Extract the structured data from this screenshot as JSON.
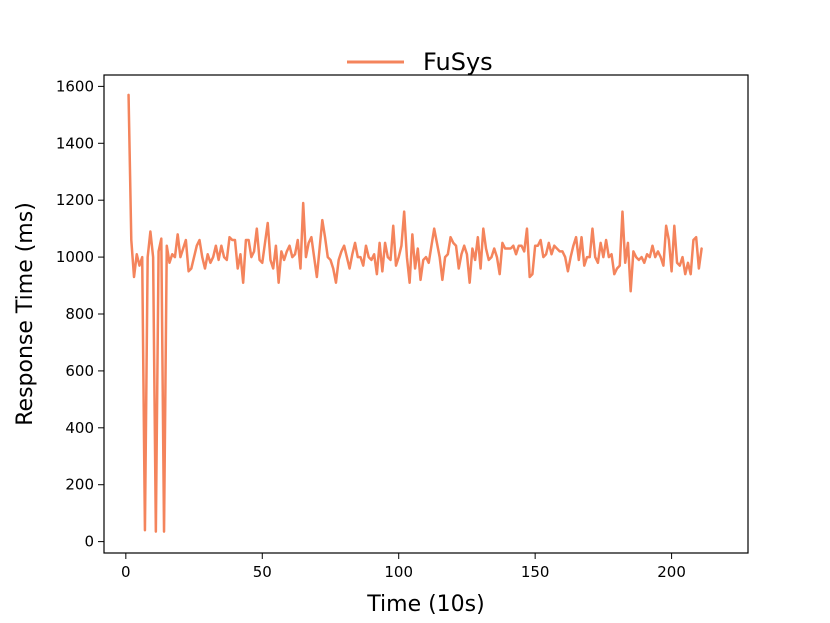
{
  "chart_data": {
    "type": "line",
    "title": "",
    "xlabel": "Time (10s)",
    "ylabel": "Response Time (ms)",
    "xlim": [
      -8,
      228
    ],
    "ylim": [
      -40,
      1640
    ],
    "x_ticks": [
      0,
      50,
      100,
      150,
      200
    ],
    "y_ticks": [
      0,
      200,
      400,
      600,
      800,
      1000,
      1200,
      1400,
      1600
    ],
    "grid": false,
    "legend_position": "top-center",
    "series": [
      {
        "name": "FuSys",
        "color": "#f4845c",
        "x_start": 1,
        "x_step": 1,
        "values": [
          1570,
          1060,
          930,
          1010,
          970,
          1000,
          40,
          1000,
          1090,
          1000,
          35,
          1020,
          1065,
          35,
          1040,
          980,
          1010,
          1000,
          1080,
          1000,
          1030,
          1060,
          950,
          960,
          1000,
          1040,
          1060,
          1000,
          960,
          1010,
          980,
          1000,
          1040,
          990,
          1040,
          1000,
          990,
          1070,
          1060,
          1060,
          960,
          1010,
          910,
          1060,
          1060,
          1000,
          1020,
          1100,
          990,
          980,
          1050,
          1120,
          990,
          960,
          1040,
          910,
          1020,
          990,
          1020,
          1040,
          1000,
          1010,
          1060,
          960,
          1190,
          1000,
          1050,
          1070,
          1000,
          930,
          1030,
          1130,
          1070,
          1000,
          990,
          960,
          910,
          990,
          1020,
          1040,
          1000,
          960,
          1010,
          1050,
          1000,
          1000,
          970,
          1040,
          1000,
          990,
          1010,
          940,
          1050,
          950,
          1050,
          1000,
          990,
          1110,
          970,
          1000,
          1040,
          1160,
          1000,
          910,
          1080,
          960,
          1030,
          920,
          990,
          1000,
          980,
          1040,
          1100,
          1050,
          1000,
          920,
          1000,
          1010,
          1070,
          1050,
          1040,
          960,
          1010,
          1040,
          1010,
          910,
          1030,
          990,
          1070,
          960,
          1100,
          1030,
          990,
          1000,
          1030,
          1000,
          940,
          1050,
          1030,
          1030,
          1030,
          1040,
          1010,
          1040,
          1040,
          1020,
          1100,
          930,
          940,
          1040,
          1040,
          1060,
          1000,
          1010,
          1050,
          1010,
          1040,
          1030,
          1020,
          1020,
          1000,
          950,
          1000,
          1040,
          1070,
          990,
          1070,
          970,
          1000,
          1000,
          1100,
          1000,
          980,
          1050,
          1000,
          1060,
          1000,
          1010,
          940,
          960,
          970,
          1160,
          980,
          1050,
          880,
          1020,
          1000,
          990,
          1000,
          980,
          1010,
          1000,
          1040,
          1000,
          1020,
          1000,
          970,
          1110,
          1060,
          950,
          1110,
          980,
          970,
          1000,
          940,
          980,
          940,
          1060,
          1070,
          960,
          1030
        ]
      }
    ]
  }
}
